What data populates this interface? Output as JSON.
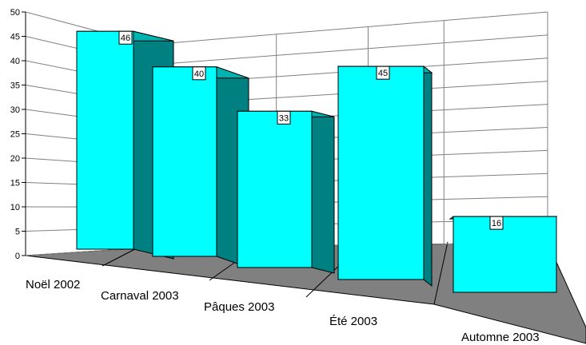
{
  "chart_data": {
    "type": "bar",
    "categories": [
      "Noël 2002",
      "Carnaval 2003",
      "Pâques 2003",
      "Été 2003",
      "Automne 2003"
    ],
    "values": [
      46,
      40,
      33,
      45,
      16
    ],
    "data_labels": [
      "46",
      "40",
      "33",
      "45",
      "16"
    ],
    "y_ticks": [
      "0",
      "5",
      "10",
      "15",
      "20",
      "25",
      "30",
      "35",
      "40",
      "45",
      "50"
    ],
    "ylim": [
      0,
      50
    ],
    "grid": true,
    "legend": "none",
    "colors": {
      "bar_front": "#00FFFF",
      "bar_side": "#008080",
      "bar_top": "#00B3B3",
      "floor": "#808080",
      "gridline": "#808080",
      "axis": "#000000"
    }
  }
}
